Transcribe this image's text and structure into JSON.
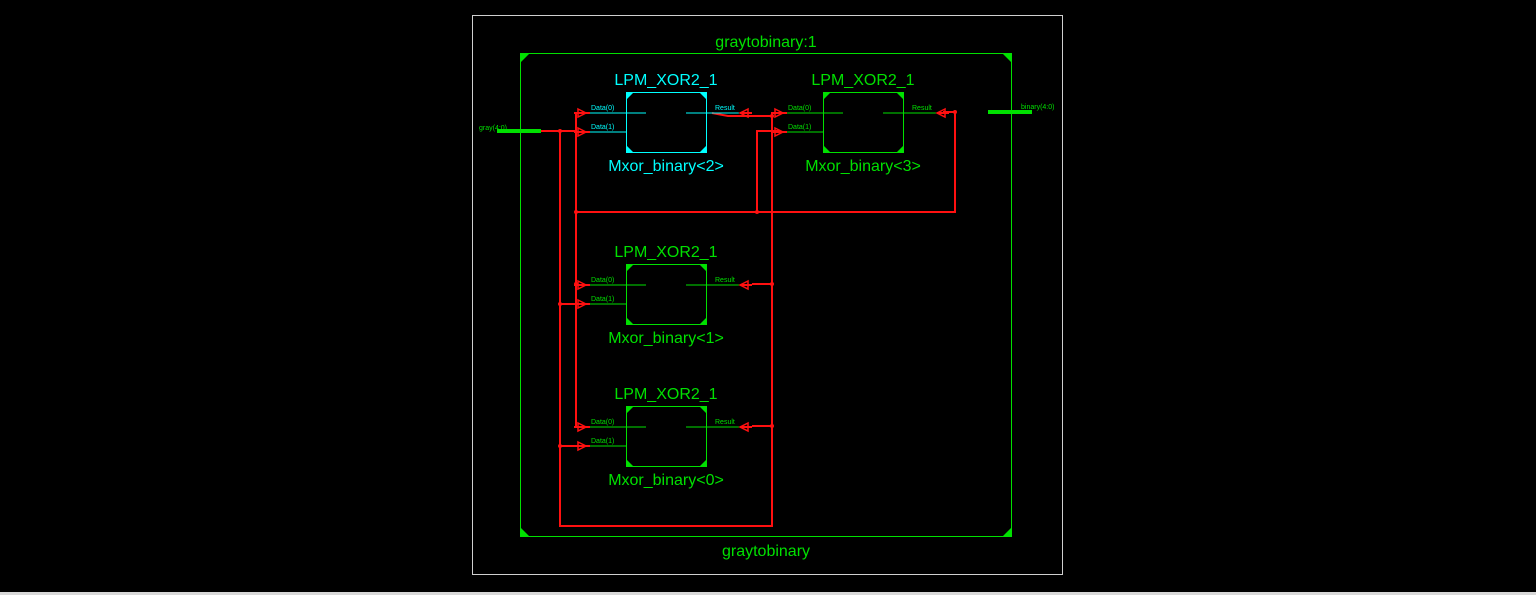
{
  "top_module": {
    "instance_label": "graytobinary:1",
    "module_label": "graytobinary"
  },
  "ports": {
    "input_label": "gray(4:0)",
    "output_label": "binary(4:0)"
  },
  "blocks": [
    {
      "id": "b2",
      "type_label": "LPM_XOR2_1",
      "instance_label": "Mxor_binary<2>",
      "pin_in0": "Data(0)",
      "pin_in1": "Data(1)",
      "pin_out": "Result",
      "selected": true
    },
    {
      "id": "b3",
      "type_label": "LPM_XOR2_1",
      "instance_label": "Mxor_binary<3>",
      "pin_in0": "Data(0)",
      "pin_in1": "Data(1)",
      "pin_out": "Result",
      "selected": false
    },
    {
      "id": "b1",
      "type_label": "LPM_XOR2_1",
      "instance_label": "Mxor_binary<1>",
      "pin_in0": "Data(0)",
      "pin_in1": "Data(1)",
      "pin_out": "Result",
      "selected": false
    },
    {
      "id": "b0",
      "type_label": "LPM_XOR2_1",
      "instance_label": "Mxor_binary<0>",
      "pin_in0": "Data(0)",
      "pin_in1": "Data(1)",
      "pin_out": "Result",
      "selected": false
    }
  ],
  "colors": {
    "background": "#000000",
    "module_border": "#00e000",
    "selected": "#00ffff",
    "wire": "#ff1010",
    "frame": "#cccccc"
  }
}
